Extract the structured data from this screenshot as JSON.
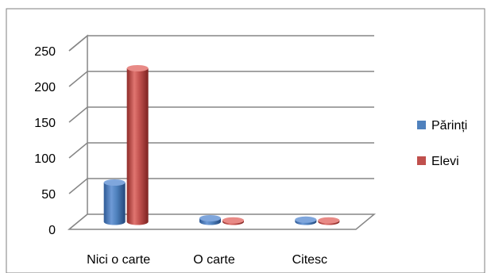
{
  "chart_data": {
    "type": "bar",
    "categories": [
      "Nici o carte",
      "O carte",
      "Citesc"
    ],
    "series": [
      {
        "name": "Părinți",
        "values": [
          55,
          5,
          3
        ],
        "color": "#4f81bd"
      },
      {
        "name": "Elevi",
        "values": [
          215,
          2,
          2
        ],
        "color": "#c0504d"
      }
    ],
    "ylim": [
      0,
      250
    ],
    "yticks": [
      0,
      50,
      100,
      150,
      200,
      250
    ],
    "grid": true,
    "legend": "right",
    "style": "3d-cylinder"
  }
}
